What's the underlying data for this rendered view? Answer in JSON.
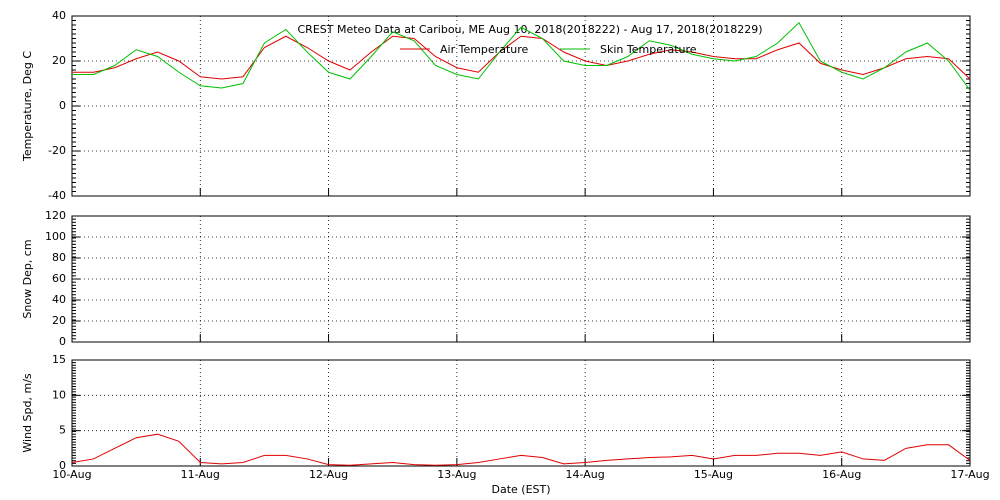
{
  "chart_data": [
    {
      "type": "line",
      "title": "CREST Meteo Data at Caribou, ME   Aug 10, 2018(2018222) - Aug 17, 2018(2018229)",
      "ylabel": "Temperature, Deg C",
      "grid": true,
      "legend": "top",
      "x": [
        10,
        10.167,
        10.333,
        10.5,
        10.667,
        10.833,
        11,
        11.167,
        11.333,
        11.5,
        11.667,
        11.833,
        12,
        12.167,
        12.333,
        12.5,
        12.667,
        12.833,
        13,
        13.167,
        13.333,
        13.5,
        13.667,
        13.833,
        14,
        14.167,
        14.333,
        14.5,
        14.667,
        14.833,
        15,
        15.167,
        15.333,
        15.5,
        15.667,
        15.833,
        16,
        16.167,
        16.333,
        16.5,
        16.667,
        16.833,
        17
      ],
      "xlim": [
        10,
        17
      ],
      "ylim": [
        -40,
        40
      ],
      "yticks": [
        -40,
        -20,
        0,
        20,
        40
      ],
      "series": [
        {
          "name": "Air Temperature",
          "color": "#e00000",
          "values": [
            15,
            15,
            17,
            21,
            24,
            20,
            13,
            12,
            13,
            26,
            31,
            26,
            20,
            16,
            24,
            31,
            30,
            22,
            17,
            15,
            24,
            31,
            30,
            24,
            20,
            18,
            20,
            23,
            25,
            24,
            22,
            21,
            21,
            25,
            28,
            19,
            16,
            14,
            17,
            21,
            22,
            21,
            12
          ]
        },
        {
          "name": "Skin Temperature",
          "color": "#00c000",
          "values": [
            14,
            14,
            18,
            25,
            22,
            15,
            9,
            8,
            10,
            28,
            34,
            24,
            15,
            12,
            22,
            33,
            29,
            18,
            14,
            12,
            24,
            35,
            30,
            20,
            18,
            18,
            22,
            29,
            27,
            23,
            21,
            20,
            22,
            28,
            37,
            20,
            15,
            12,
            17,
            24,
            28,
            20,
            7
          ]
        }
      ]
    },
    {
      "type": "line",
      "ylabel": "Snow Dep, cm",
      "grid": true,
      "xlim": [
        10,
        17
      ],
      "ylim": [
        0,
        120
      ],
      "yticks": [
        0,
        20,
        40,
        60,
        80,
        100,
        120
      ]
    },
    {
      "type": "line",
      "ylabel": "Wind Spd, m/s",
      "xlabel": "Date (EST)",
      "grid": true,
      "x": [
        10,
        10.167,
        10.333,
        10.5,
        10.667,
        10.833,
        11,
        11.167,
        11.333,
        11.5,
        11.667,
        11.833,
        12,
        12.167,
        12.333,
        12.5,
        12.667,
        12.833,
        13,
        13.167,
        13.333,
        13.5,
        13.667,
        13.833,
        14,
        14.167,
        14.333,
        14.5,
        14.667,
        14.833,
        15,
        15.167,
        15.333,
        15.5,
        15.667,
        15.833,
        16,
        16.167,
        16.333,
        16.5,
        16.667,
        16.833,
        17
      ],
      "xlim": [
        10,
        17
      ],
      "ylim": [
        0,
        15
      ],
      "yticks": [
        0,
        5,
        10,
        15
      ],
      "xticks": [
        {
          "value": 10,
          "label": "10-Aug"
        },
        {
          "value": 11,
          "label": "11-Aug"
        },
        {
          "value": 12,
          "label": "12-Aug"
        },
        {
          "value": 13,
          "label": "13-Aug"
        },
        {
          "value": 14,
          "label": "14-Aug"
        },
        {
          "value": 15,
          "label": "15-Aug"
        },
        {
          "value": 16,
          "label": "16-Aug"
        },
        {
          "value": 17,
          "label": "17-Aug"
        }
      ],
      "series": [
        {
          "color": "#e00000",
          "values": [
            0.5,
            1,
            2.5,
            4,
            4.5,
            3.5,
            0.5,
            0.3,
            0.5,
            1.5,
            1.5,
            1,
            0.2,
            0.1,
            0.3,
            0.5,
            0.2,
            0.1,
            0.2,
            0.5,
            1,
            1.5,
            1.2,
            0.3,
            0.5,
            0.8,
            1,
            1.2,
            1.3,
            1.5,
            1,
            1.5,
            1.5,
            1.8,
            1.8,
            1.5,
            2,
            1,
            0.8,
            2.5,
            3,
            3,
            0.8
          ]
        }
      ]
    }
  ]
}
